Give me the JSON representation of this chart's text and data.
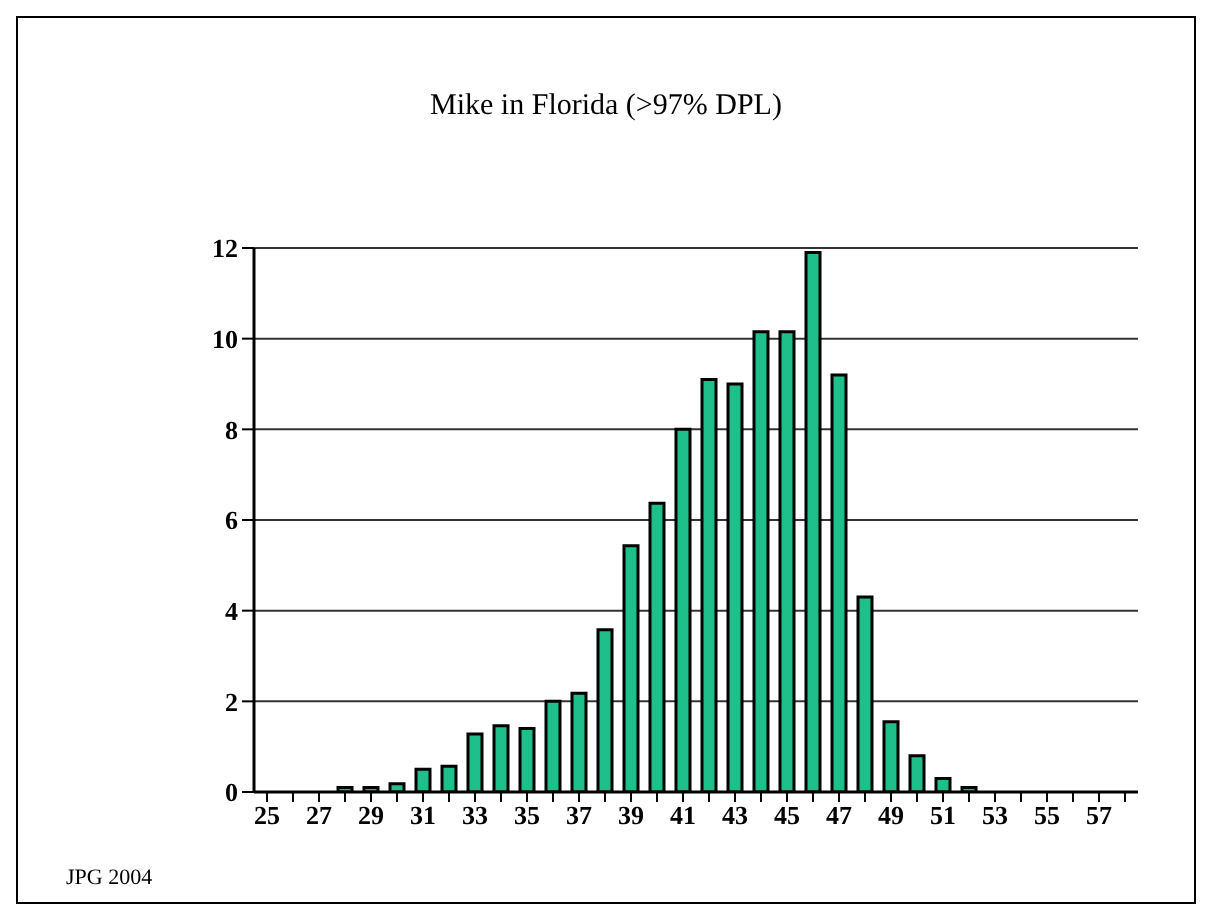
{
  "chart_data": {
    "type": "bar",
    "title": "Mike in Florida (>97% DPL)",
    "categories": [
      "25",
      null,
      "27",
      null,
      "29",
      null,
      "31",
      null,
      "33",
      null,
      "35",
      null,
      "37",
      null,
      "39",
      null,
      "41",
      null,
      "43",
      null,
      "45",
      null,
      "47",
      null,
      "49",
      null,
      "51",
      null,
      "53",
      null,
      "55",
      null,
      "57",
      null
    ],
    "values": [
      0,
      0,
      0,
      0.1,
      0.1,
      0.18,
      0.5,
      0.57,
      1.28,
      1.46,
      1.4,
      2.0,
      2.18,
      3.58,
      5.43,
      6.37,
      8.0,
      9.1,
      9.0,
      10.15,
      10.15,
      11.9,
      9.2,
      4.3,
      1.55,
      0.8,
      0.3,
      0.1,
      0,
      0,
      0,
      0,
      0,
      0
    ],
    "color": "#1fbf8c",
    "ylim": [
      0,
      12
    ],
    "yticks": [
      0,
      2,
      4,
      6,
      8,
      10,
      12
    ],
    "grid": "y",
    "annotations": [
      "JPG 2004"
    ]
  }
}
